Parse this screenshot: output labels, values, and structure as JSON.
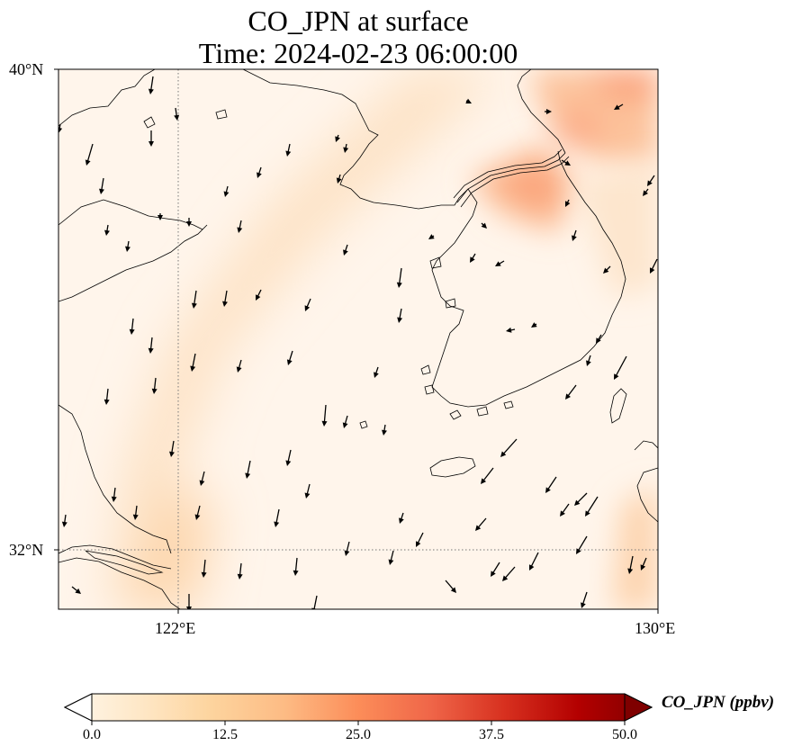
{
  "title": {
    "line1": "CO_JPN at surface",
    "line2": "Time: 2024-02-23 06:00:00"
  },
  "axes": {
    "lat_labels": [
      "40°N",
      "32°N"
    ],
    "lon_labels": [
      "122°E",
      "130°E"
    ],
    "extent": {
      "lon_min": 120,
      "lon_max": 130,
      "lat_min": 31,
      "lat_max": 40
    }
  },
  "colorbar": {
    "label": "CO_JPN (ppbv)",
    "min": 0,
    "max": 50,
    "ticks": [
      "0.0",
      "12.5",
      "25.0",
      "37.5",
      "50.0"
    ],
    "colormap": "OrRd",
    "extend": "both"
  },
  "chart_data": {
    "type": "heatmap",
    "variable": "CO_JPN",
    "units": "ppbv",
    "projection": "PlateCarree",
    "gridlines": {
      "lon": [
        122,
        130
      ],
      "lat": [
        32,
        40
      ],
      "style": "dotted"
    },
    "hotspots": [
      {
        "lon": 128.5,
        "lat": 37.8,
        "value": 20
      },
      {
        "lon": 129.3,
        "lat": 39.7,
        "value": 24
      },
      {
        "lon": 122.8,
        "lat": 37.0,
        "value": 9
      },
      {
        "lon": 121.5,
        "lat": 32.5,
        "value": 10
      },
      {
        "lon": 129.8,
        "lat": 31.6,
        "value": 10
      }
    ],
    "overlay": "wind vectors (predominantly north-northeasterly flow)"
  },
  "colors": {
    "map_background": "#fff5eb",
    "coastline": "#000000",
    "arrow": "#000000"
  }
}
